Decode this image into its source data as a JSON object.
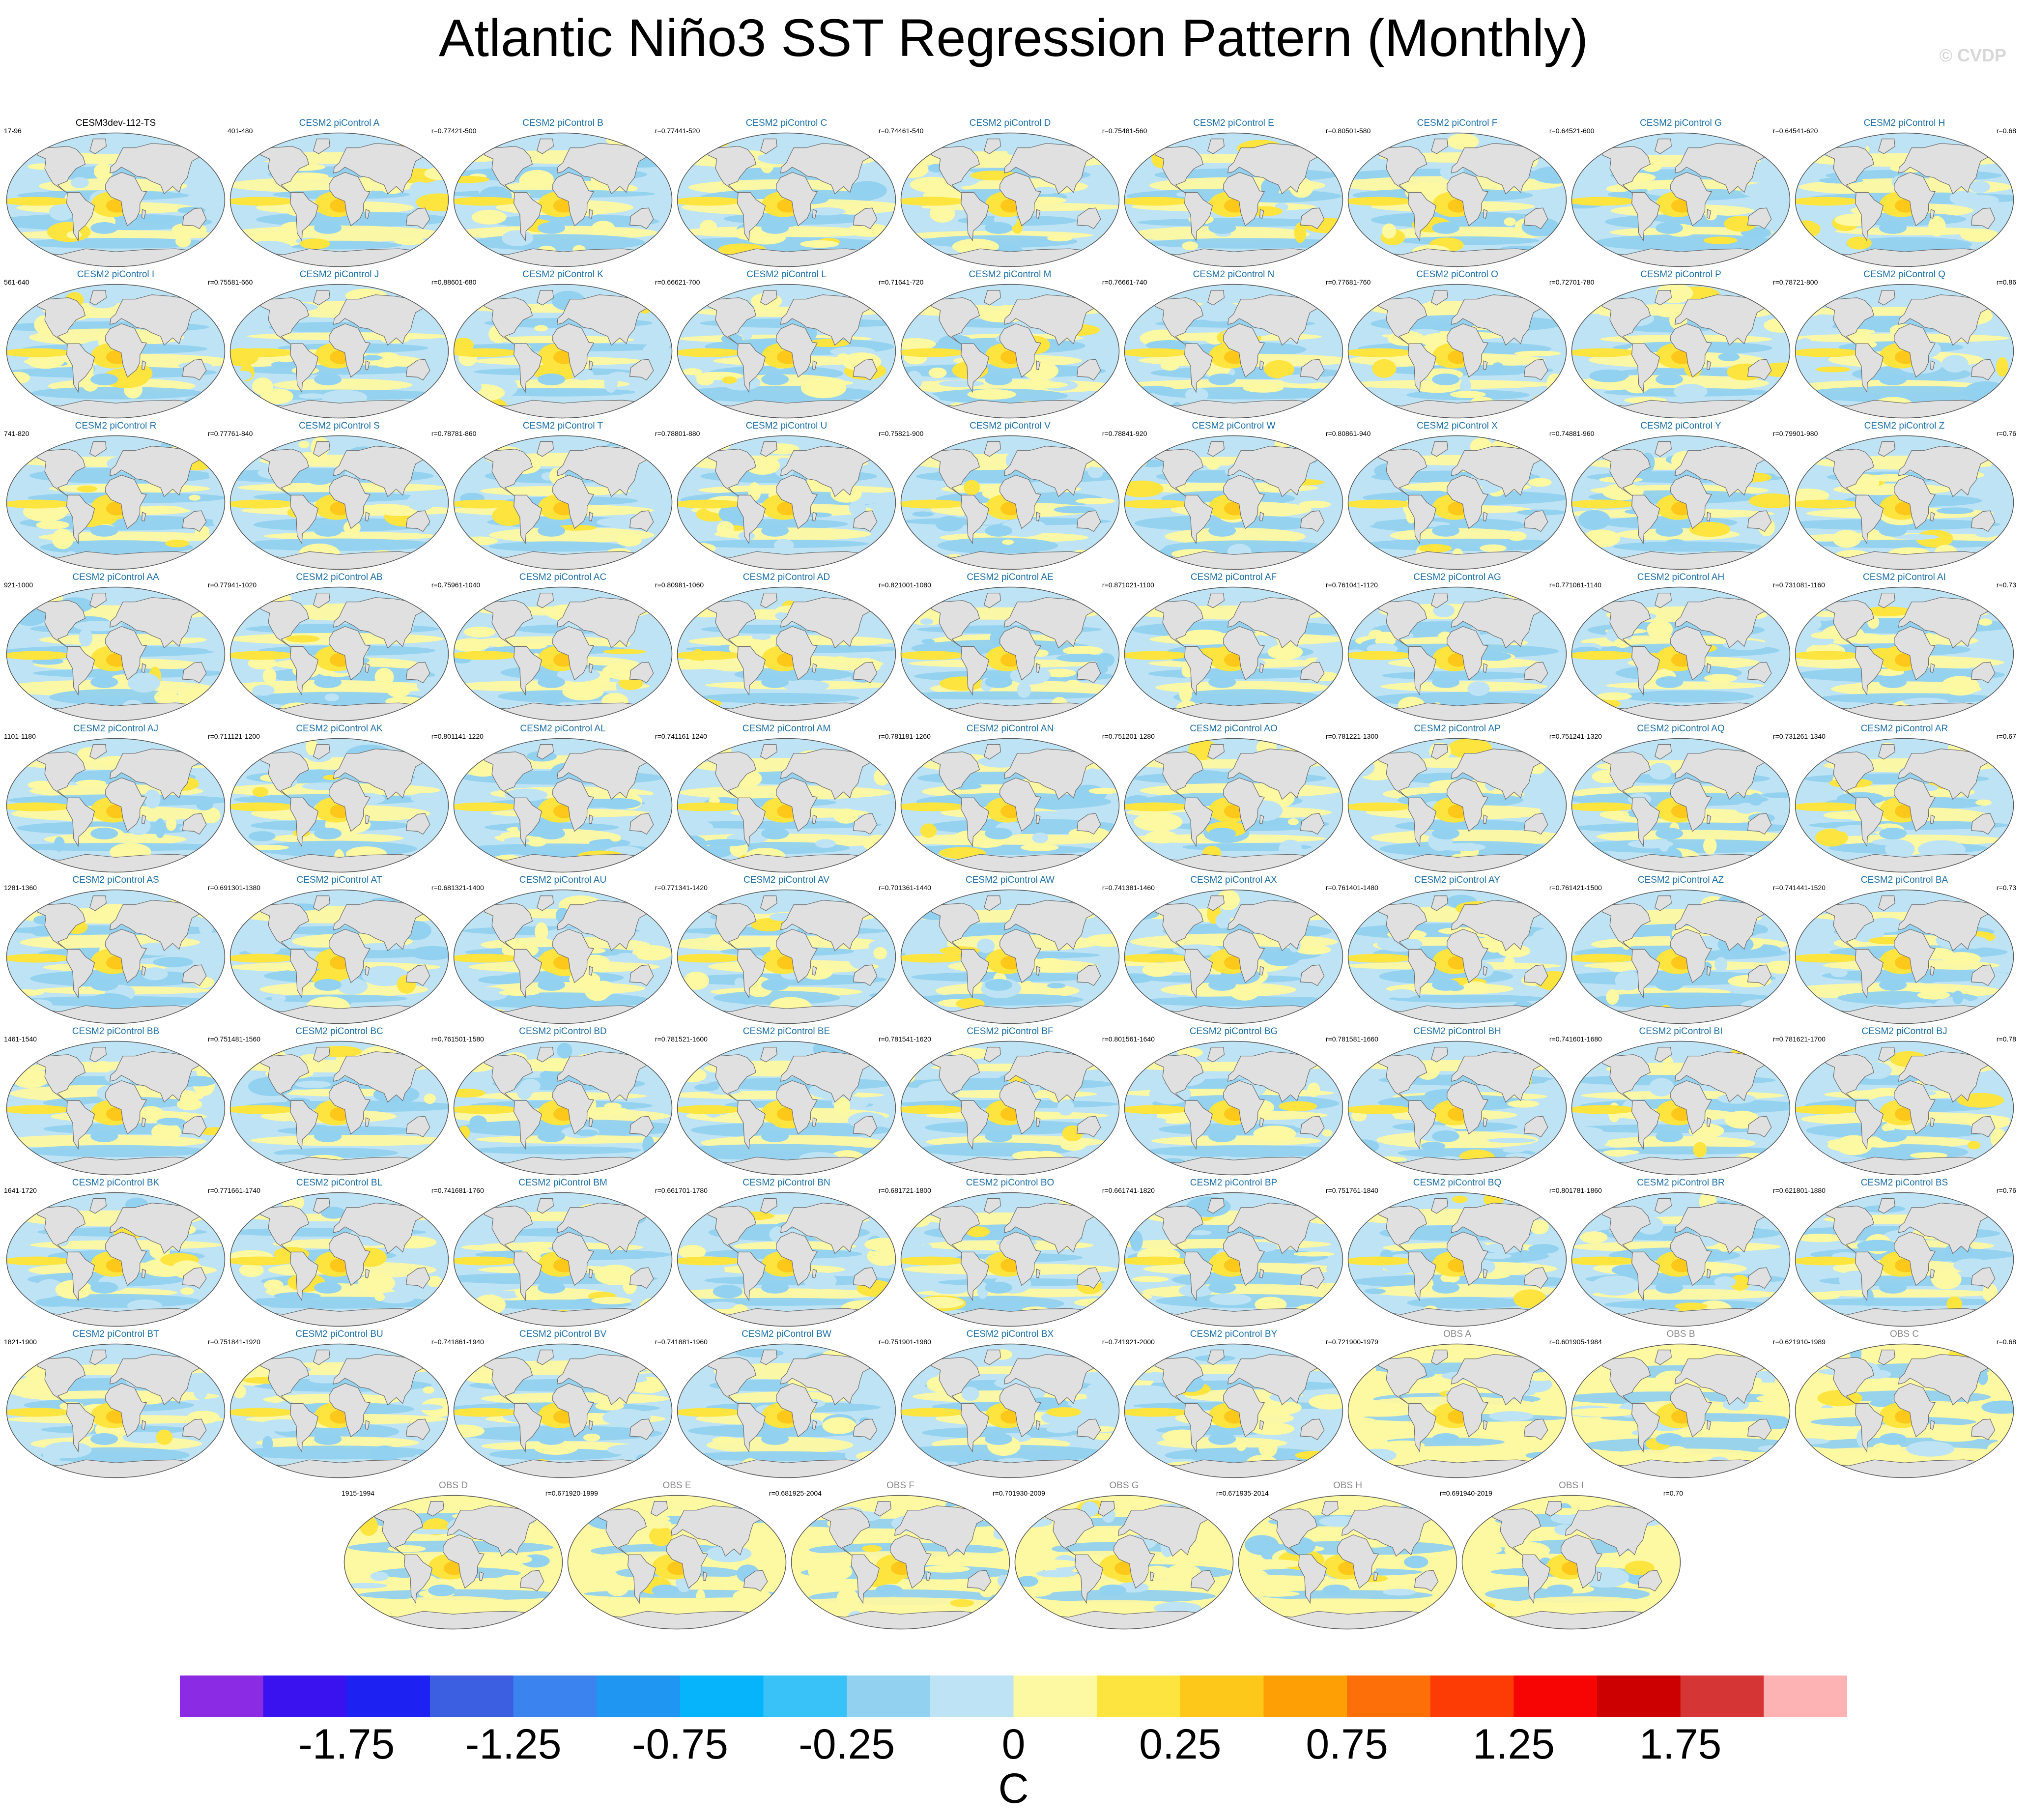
{
  "title": "Atlantic Niño3 SST Regression Pattern (Monthly)",
  "copyright": "© CVDP",
  "colors": {
    "ocean_neutral": "#bfe3f5",
    "land": "#e0e0e0",
    "coast": "#6a6a6a",
    "model_title": "#1c6fa8",
    "obs_title": "#8a8a8a"
  },
  "chart_data": {
    "type": "heatmap",
    "projection": "Robinson",
    "variable": "SST regression on Atlantic Niño3 index",
    "units": "C",
    "colorbar": {
      "levels": [
        -2.0,
        -1.75,
        -1.5,
        -1.25,
        -1.0,
        -0.75,
        -0.5,
        -0.25,
        -0.1,
        0.0,
        0.1,
        0.25,
        0.5,
        0.75,
        1.0,
        1.25,
        1.5,
        1.75,
        2.0
      ],
      "tick_labels": [
        "-1.75",
        "-1.25",
        "-0.75",
        "-0.25",
        "0",
        "0.25",
        "0.75",
        "1.25",
        "1.75"
      ],
      "colors": [
        "#8b2be3",
        "#3a12f0",
        "#1d22f2",
        "#3c5ee0",
        "#3b83ef",
        "#1e96f2",
        "#05b4fa",
        "#38c2f7",
        "#92d1ef",
        "#bde3f4",
        "#fdf8a2",
        "#fde43e",
        "#fdc81a",
        "#fd9f05",
        "#fd6f08",
        "#fd3b05",
        "#f70404",
        "#cc0000",
        "#d63535",
        "#fdb3b3"
      ],
      "label": "C"
    },
    "panels": [
      {
        "title": "CESM3dev-112-TS",
        "left": "17-96",
        "right": "",
        "kind": "ref"
      },
      {
        "title": "CESM2 piControl A",
        "left": "401-480",
        "right": "r=0.77",
        "kind": "model"
      },
      {
        "title": "CESM2 piControl B",
        "left": "421-500",
        "right": "r=0.77",
        "kind": "model"
      },
      {
        "title": "CESM2 piControl C",
        "left": "441-520",
        "right": "r=0.74",
        "kind": "model"
      },
      {
        "title": "CESM2 piControl D",
        "left": "461-540",
        "right": "r=0.75",
        "kind": "model"
      },
      {
        "title": "CESM2 piControl E",
        "left": "481-560",
        "right": "r=0.80",
        "kind": "model"
      },
      {
        "title": "CESM2 piControl F",
        "left": "501-580",
        "right": "r=0.64",
        "kind": "model"
      },
      {
        "title": "CESM2 piControl G",
        "left": "521-600",
        "right": "r=0.64",
        "kind": "model"
      },
      {
        "title": "CESM2 piControl H",
        "left": "541-620",
        "right": "r=0.68",
        "kind": "model"
      },
      {
        "title": "CESM2 piControl I",
        "left": "561-640",
        "right": "r=0.75",
        "kind": "model"
      },
      {
        "title": "CESM2 piControl J",
        "left": "581-660",
        "right": "r=0.88",
        "kind": "model"
      },
      {
        "title": "CESM2 piControl K",
        "left": "601-680",
        "right": "r=0.66",
        "kind": "model"
      },
      {
        "title": "CESM2 piControl L",
        "left": "621-700",
        "right": "r=0.71",
        "kind": "model"
      },
      {
        "title": "CESM2 piControl M",
        "left": "641-720",
        "right": "r=0.76",
        "kind": "model"
      },
      {
        "title": "CESM2 piControl N",
        "left": "661-740",
        "right": "r=0.77",
        "kind": "model"
      },
      {
        "title": "CESM2 piControl O",
        "left": "681-760",
        "right": "r=0.72",
        "kind": "model"
      },
      {
        "title": "CESM2 piControl P",
        "left": "701-780",
        "right": "r=0.78",
        "kind": "model"
      },
      {
        "title": "CESM2 piControl Q",
        "left": "721-800",
        "right": "r=0.86",
        "kind": "model"
      },
      {
        "title": "CESM2 piControl R",
        "left": "741-820",
        "right": "r=0.77",
        "kind": "model"
      },
      {
        "title": "CESM2 piControl S",
        "left": "761-840",
        "right": "r=0.78",
        "kind": "model"
      },
      {
        "title": "CESM2 piControl T",
        "left": "781-860",
        "right": "r=0.78",
        "kind": "model"
      },
      {
        "title": "CESM2 piControl U",
        "left": "801-880",
        "right": "r=0.75",
        "kind": "model"
      },
      {
        "title": "CESM2 piControl V",
        "left": "821-900",
        "right": "r=0.78",
        "kind": "model"
      },
      {
        "title": "CESM2 piControl W",
        "left": "841-920",
        "right": "r=0.80",
        "kind": "model"
      },
      {
        "title": "CESM2 piControl X",
        "left": "861-940",
        "right": "r=0.74",
        "kind": "model"
      },
      {
        "title": "CESM2 piControl Y",
        "left": "881-960",
        "right": "r=0.79",
        "kind": "model"
      },
      {
        "title": "CESM2 piControl Z",
        "left": "901-980",
        "right": "r=0.76",
        "kind": "model"
      },
      {
        "title": "CESM2 piControl AA",
        "left": "921-1000",
        "right": "r=0.77",
        "kind": "model"
      },
      {
        "title": "CESM2 piControl AB",
        "left": "941-1020",
        "right": "r=0.75",
        "kind": "model"
      },
      {
        "title": "CESM2 piControl AC",
        "left": "961-1040",
        "right": "r=0.80",
        "kind": "model"
      },
      {
        "title": "CESM2 piControl AD",
        "left": "981-1060",
        "right": "r=0.82",
        "kind": "model"
      },
      {
        "title": "CESM2 piControl AE",
        "left": "1001-1080",
        "right": "r=0.87",
        "kind": "model"
      },
      {
        "title": "CESM2 piControl AF",
        "left": "1021-1100",
        "right": "r=0.76",
        "kind": "model"
      },
      {
        "title": "CESM2 piControl AG",
        "left": "1041-1120",
        "right": "r=0.77",
        "kind": "model"
      },
      {
        "title": "CESM2 piControl AH",
        "left": "1061-1140",
        "right": "r=0.73",
        "kind": "model"
      },
      {
        "title": "CESM2 piControl AI",
        "left": "1081-1160",
        "right": "r=0.73",
        "kind": "model"
      },
      {
        "title": "CESM2 piControl AJ",
        "left": "1101-1180",
        "right": "r=0.71",
        "kind": "model"
      },
      {
        "title": "CESM2 piControl AK",
        "left": "1121-1200",
        "right": "r=0.80",
        "kind": "model"
      },
      {
        "title": "CESM2 piControl AL",
        "left": "1141-1220",
        "right": "r=0.74",
        "kind": "model"
      },
      {
        "title": "CESM2 piControl AM",
        "left": "1161-1240",
        "right": "r=0.78",
        "kind": "model"
      },
      {
        "title": "CESM2 piControl AN",
        "left": "1181-1260",
        "right": "r=0.75",
        "kind": "model"
      },
      {
        "title": "CESM2 piControl AO",
        "left": "1201-1280",
        "right": "r=0.78",
        "kind": "model"
      },
      {
        "title": "CESM2 piControl AP",
        "left": "1221-1300",
        "right": "r=0.75",
        "kind": "model"
      },
      {
        "title": "CESM2 piControl AQ",
        "left": "1241-1320",
        "right": "r=0.73",
        "kind": "model"
      },
      {
        "title": "CESM2 piControl AR",
        "left": "1261-1340",
        "right": "r=0.67",
        "kind": "model"
      },
      {
        "title": "CESM2 piControl AS",
        "left": "1281-1360",
        "right": "r=0.69",
        "kind": "model"
      },
      {
        "title": "CESM2 piControl AT",
        "left": "1301-1380",
        "right": "r=0.68",
        "kind": "model"
      },
      {
        "title": "CESM2 piControl AU",
        "left": "1321-1400",
        "right": "r=0.77",
        "kind": "model"
      },
      {
        "title": "CESM2 piControl AV",
        "left": "1341-1420",
        "right": "r=0.70",
        "kind": "model"
      },
      {
        "title": "CESM2 piControl AW",
        "left": "1361-1440",
        "right": "r=0.74",
        "kind": "model"
      },
      {
        "title": "CESM2 piControl AX",
        "left": "1381-1460",
        "right": "r=0.76",
        "kind": "model"
      },
      {
        "title": "CESM2 piControl AY",
        "left": "1401-1480",
        "right": "r=0.76",
        "kind": "model"
      },
      {
        "title": "CESM2 piControl AZ",
        "left": "1421-1500",
        "right": "r=0.74",
        "kind": "model"
      },
      {
        "title": "CESM2 piControl BA",
        "left": "1441-1520",
        "right": "r=0.73",
        "kind": "model"
      },
      {
        "title": "CESM2 piControl BB",
        "left": "1461-1540",
        "right": "r=0.75",
        "kind": "model"
      },
      {
        "title": "CESM2 piControl BC",
        "left": "1481-1560",
        "right": "r=0.76",
        "kind": "model"
      },
      {
        "title": "CESM2 piControl BD",
        "left": "1501-1580",
        "right": "r=0.78",
        "kind": "model"
      },
      {
        "title": "CESM2 piControl BE",
        "left": "1521-1600",
        "right": "r=0.78",
        "kind": "model"
      },
      {
        "title": "CESM2 piControl BF",
        "left": "1541-1620",
        "right": "r=0.80",
        "kind": "model"
      },
      {
        "title": "CESM2 piControl BG",
        "left": "1561-1640",
        "right": "r=0.78",
        "kind": "model"
      },
      {
        "title": "CESM2 piControl BH",
        "left": "1581-1660",
        "right": "r=0.74",
        "kind": "model"
      },
      {
        "title": "CESM2 piControl BI",
        "left": "1601-1680",
        "right": "r=0.78",
        "kind": "model"
      },
      {
        "title": "CESM2 piControl BJ",
        "left": "1621-1700",
        "right": "r=0.78",
        "kind": "model"
      },
      {
        "title": "CESM2 piControl BK",
        "left": "1641-1720",
        "right": "r=0.77",
        "kind": "model"
      },
      {
        "title": "CESM2 piControl BL",
        "left": "1661-1740",
        "right": "r=0.74",
        "kind": "model"
      },
      {
        "title": "CESM2 piControl BM",
        "left": "1681-1760",
        "right": "r=0.66",
        "kind": "model"
      },
      {
        "title": "CESM2 piControl BN",
        "left": "1701-1780",
        "right": "r=0.68",
        "kind": "model"
      },
      {
        "title": "CESM2 piControl BO",
        "left": "1721-1800",
        "right": "r=0.66",
        "kind": "model"
      },
      {
        "title": "CESM2 piControl BP",
        "left": "1741-1820",
        "right": "r=0.75",
        "kind": "model"
      },
      {
        "title": "CESM2 piControl BQ",
        "left": "1761-1840",
        "right": "r=0.80",
        "kind": "model"
      },
      {
        "title": "CESM2 piControl BR",
        "left": "1781-1860",
        "right": "r=0.62",
        "kind": "model"
      },
      {
        "title": "CESM2 piControl BS",
        "left": "1801-1880",
        "right": "r=0.76",
        "kind": "model"
      },
      {
        "title": "CESM2 piControl BT",
        "left": "1821-1900",
        "right": "r=0.75",
        "kind": "model"
      },
      {
        "title": "CESM2 piControl BU",
        "left": "1841-1920",
        "right": "r=0.74",
        "kind": "model"
      },
      {
        "title": "CESM2 piControl BV",
        "left": "1861-1940",
        "right": "r=0.74",
        "kind": "model"
      },
      {
        "title": "CESM2 piControl BW",
        "left": "1881-1960",
        "right": "r=0.75",
        "kind": "model"
      },
      {
        "title": "CESM2 piControl BX",
        "left": "1901-1980",
        "right": "r=0.74",
        "kind": "model"
      },
      {
        "title": "CESM2 piControl BY",
        "left": "1921-2000",
        "right": "r=0.72",
        "kind": "model"
      },
      {
        "title": "OBS A",
        "left": "1900-1979",
        "right": "r=0.60",
        "kind": "obs"
      },
      {
        "title": "OBS B",
        "left": "1905-1984",
        "right": "r=0.62",
        "kind": "obs"
      },
      {
        "title": "OBS C",
        "left": "1910-1989",
        "right": "r=0.68",
        "kind": "obs"
      },
      {
        "title": "OBS D",
        "left": "1915-1994",
        "right": "r=0.67",
        "kind": "obs"
      },
      {
        "title": "OBS E",
        "left": "1920-1999",
        "right": "r=0.68",
        "kind": "obs"
      },
      {
        "title": "OBS F",
        "left": "1925-2004",
        "right": "r=0.70",
        "kind": "obs"
      },
      {
        "title": "OBS G",
        "left": "1930-2009",
        "right": "r=0.67",
        "kind": "obs"
      },
      {
        "title": "OBS H",
        "left": "1935-2014",
        "right": "r=0.69",
        "kind": "obs"
      },
      {
        "title": "OBS I",
        "left": "1940-2019",
        "right": "r=0.70",
        "kind": "obs"
      }
    ]
  }
}
